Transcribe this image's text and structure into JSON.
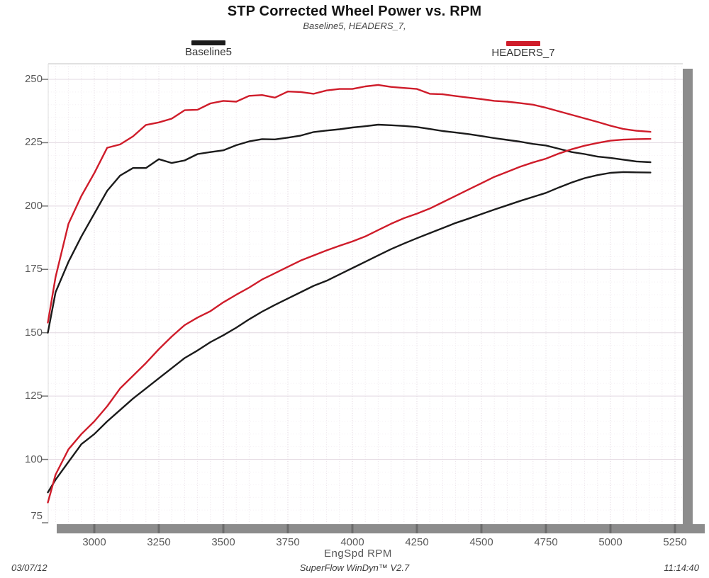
{
  "title": "STP Corrected Wheel Power vs. RPM",
  "subtitle": "Baseline5, HEADERS_7,",
  "legend": [
    {
      "label": "Baseline5",
      "color": "#1b1b1b"
    },
    {
      "label": "HEADERS_7",
      "color": "#cf1c2a"
    }
  ],
  "footer": {
    "date": "03/07/12",
    "center": "SuperFlow WinDyn™ V2.7",
    "time": "11:14:40"
  },
  "colors": {
    "baseline5": "#1b1b1b",
    "headers7": "#cf1c2a",
    "axis_shadow": "#8c8c8c"
  },
  "chart_data": {
    "type": "line",
    "title": "STP Corrected Wheel Power vs. RPM",
    "subtitle": "Baseline5, HEADERS_7,",
    "xlabel": "EngSpd RPM",
    "ylabel": "",
    "xlim": [
      2820,
      5280
    ],
    "ylim": [
      75,
      256
    ],
    "grid": "dotted",
    "legend_position": "top",
    "x_ticks": [
      3000,
      3250,
      3500,
      3750,
      4000,
      4250,
      4500,
      4750,
      5000,
      5250
    ],
    "y_ticks": [
      75,
      100,
      125,
      150,
      175,
      200,
      225,
      250
    ],
    "x": [
      2820,
      2850,
      2900,
      2950,
      3000,
      3050,
      3100,
      3150,
      3200,
      3250,
      3300,
      3350,
      3400,
      3450,
      3500,
      3550,
      3600,
      3650,
      3700,
      3750,
      3800,
      3850,
      3900,
      3950,
      4000,
      4050,
      4100,
      4150,
      4200,
      4250,
      4300,
      4350,
      4400,
      4450,
      4500,
      4550,
      4600,
      4650,
      4700,
      4750,
      4800,
      4850,
      4900,
      4950,
      5000,
      5050,
      5100,
      5155
    ],
    "series": [
      {
        "name": "Baseline5 (upper)",
        "color": "#1b1b1b",
        "values": [
          150,
          166,
          178,
          188,
          197,
          206,
          212,
          215,
          215,
          218.5,
          217,
          218,
          220.5,
          221.3,
          222,
          224,
          225.5,
          226.4,
          226.3,
          227,
          227.8,
          229.2,
          229.8,
          230.3,
          231,
          231.5,
          232.1,
          231.9,
          231.6,
          231.2,
          230.4,
          229.6,
          229,
          228.4,
          227.6,
          226.8,
          226.1,
          225.4,
          224.5,
          223.9,
          222.6,
          221.3,
          220.5,
          219.5,
          219,
          218.3,
          217.6,
          217.3
        ]
      },
      {
        "name": "Baseline5 (lower)",
        "color": "#1b1b1b",
        "values": [
          87,
          92,
          99,
          106,
          110,
          115,
          119.5,
          124,
          128,
          132,
          136,
          140,
          143,
          146.3,
          149,
          152,
          155.3,
          158.3,
          161,
          163.5,
          166,
          168.5,
          170.5,
          173,
          175.5,
          178,
          180.5,
          183,
          185.2,
          187.3,
          189.3,
          191.3,
          193.3,
          195,
          196.8,
          198.6,
          200.3,
          202,
          203.6,
          205.2,
          207.3,
          209.3,
          211,
          212.2,
          213.1,
          213.4,
          213.3,
          213.2
        ]
      },
      {
        "name": "HEADERS_7 (upper)",
        "color": "#cf1c2a",
        "values": [
          154,
          172,
          193,
          204,
          213,
          223,
          224.3,
          227.5,
          232,
          233,
          234.5,
          237.8,
          238,
          240.5,
          241.5,
          241.2,
          243.5,
          243.8,
          242.8,
          245.2,
          245,
          244.3,
          245.6,
          246.2,
          246.2,
          247.2,
          247.8,
          247,
          246.6,
          246.2,
          244.3,
          244.1,
          243.4,
          242.8,
          242.2,
          241.5,
          241.2,
          240.6,
          240,
          238.8,
          237.4,
          236,
          234.6,
          233.2,
          231.7,
          230.4,
          229.7,
          229.3
        ]
      },
      {
        "name": "HEADERS_7 (lower)",
        "color": "#cf1c2a",
        "values": [
          83,
          94,
          104,
          110,
          115,
          121,
          128,
          133,
          138,
          143.5,
          148.5,
          153,
          156,
          158.5,
          162,
          165,
          167.8,
          171,
          173.5,
          176,
          178.5,
          180.5,
          182.5,
          184.3,
          186,
          188,
          190.5,
          193,
          195.2,
          197,
          199,
          201.5,
          204,
          206.5,
          209,
          211.5,
          213.5,
          215.5,
          217.2,
          218.7,
          220.7,
          222.4,
          223.8,
          224.9,
          225.8,
          226.2,
          226.4,
          226.5
        ]
      }
    ]
  }
}
